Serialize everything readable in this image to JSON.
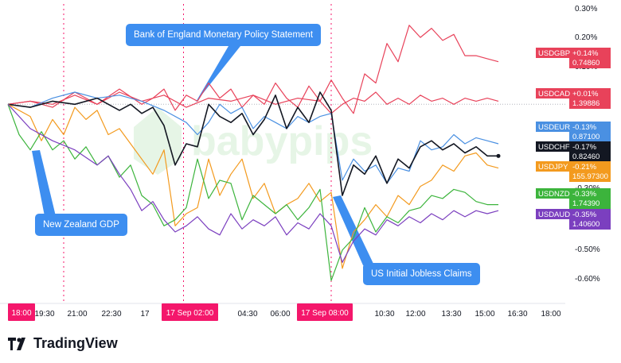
{
  "chart_data": {
    "type": "line",
    "title": "",
    "x_ticks": [
      "18:00",
      "19:30",
      "21:00",
      "22:30",
      "17",
      "02:00",
      "04:30",
      "06:00",
      "08:00",
      "10:30",
      "12:00",
      "13:30",
      "15:00",
      "16:30",
      "18:00"
    ],
    "x_tick_highlights": [
      "18:00",
      "17 Sep 02:00",
      "17 Sep 08:00"
    ],
    "y_ticks": [
      "0.30%",
      "0.20%",
      "0.10%",
      "-0.30%",
      "-0.50%",
      "-0.60%"
    ],
    "ylim": [
      -0.65,
      0.33
    ],
    "xlim": [
      0,
      100
    ],
    "series": [
      {
        "name": "USDGBP",
        "change": "+0.14%",
        "price": "0.74860",
        "color": "#e8425a",
        "x": [
          0,
          4,
          8,
          12,
          16,
          20,
          24,
          26,
          28,
          30,
          32,
          34,
          36,
          38,
          40,
          42,
          44,
          46,
          48,
          50,
          52,
          54,
          56,
          58,
          60,
          62,
          64,
          66,
          68,
          70,
          72,
          74,
          76,
          78,
          80,
          82,
          84,
          86,
          88
        ],
        "y": [
          0.0,
          0.01,
          -0.01,
          0.04,
          0.0,
          0.05,
          0.0,
          0.02,
          0.05,
          -0.02,
          0.03,
          0.01,
          0.07,
          0.02,
          0.05,
          -0.01,
          0.03,
          0.0,
          0.07,
          0.02,
          -0.01,
          0.06,
          0.01,
          0.08,
          0.02,
          -0.03,
          0.1,
          0.07,
          0.2,
          0.14,
          0.26,
          0.22,
          0.25,
          0.21,
          0.23,
          0.16,
          0.16,
          0.15,
          0.14
        ]
      },
      {
        "name": "USDCAD",
        "change": "+0.01%",
        "price": "1.39886",
        "color": "#e8425a",
        "x": [
          0,
          4,
          8,
          12,
          16,
          20,
          24,
          28,
          32,
          36,
          40,
          44,
          48,
          52,
          56,
          58,
          60,
          62,
          64,
          66,
          68,
          70,
          72,
          74,
          76,
          78,
          80,
          82,
          84,
          86,
          88
        ],
        "y": [
          0.0,
          0.01,
          0.0,
          0.03,
          0.0,
          0.04,
          0.01,
          0.03,
          -0.01,
          0.02,
          0.01,
          0.03,
          0.0,
          0.02,
          0.01,
          -0.03,
          0.0,
          0.02,
          0.01,
          0.04,
          0.0,
          0.02,
          0.0,
          0.03,
          0.01,
          0.02,
          0.0,
          0.02,
          0.01,
          0.02,
          0.01
        ]
      },
      {
        "name": "USDEUR",
        "change": "-0.13%",
        "price": "0.87100",
        "color": "#4a90e2",
        "x": [
          0,
          4,
          8,
          12,
          16,
          20,
          24,
          28,
          32,
          34,
          36,
          38,
          40,
          42,
          44,
          46,
          48,
          50,
          52,
          54,
          56,
          58,
          60,
          62,
          64,
          66,
          68,
          70,
          72,
          74,
          76,
          78,
          80,
          82,
          84,
          86,
          88
        ],
        "y": [
          0.0,
          -0.01,
          0.02,
          0.04,
          0.02,
          0.03,
          0.01,
          -0.02,
          -0.06,
          -0.1,
          -0.06,
          0.0,
          -0.03,
          -0.01,
          -0.08,
          -0.04,
          -0.06,
          -0.08,
          -0.04,
          -0.06,
          -0.04,
          -0.03,
          -0.25,
          -0.18,
          -0.22,
          -0.2,
          -0.26,
          -0.21,
          -0.22,
          -0.12,
          -0.15,
          -0.14,
          -0.1,
          -0.13,
          -0.11,
          -0.12,
          -0.13
        ]
      },
      {
        "name": "USDCHF",
        "change": "-0.17%",
        "price": "0.82460",
        "color": "#131722",
        "x": [
          0,
          4,
          8,
          12,
          16,
          20,
          22,
          24,
          26,
          28,
          30,
          32,
          34,
          36,
          38,
          40,
          42,
          44,
          46,
          48,
          50,
          52,
          54,
          56,
          58,
          60,
          62,
          64,
          66,
          68,
          70,
          72,
          74,
          76,
          78,
          80,
          82,
          84,
          86,
          88
        ],
        "y": [
          0.0,
          -0.01,
          0.01,
          0.0,
          0.02,
          -0.02,
          0.0,
          -0.03,
          -0.01,
          -0.07,
          -0.2,
          -0.13,
          -0.14,
          0.0,
          -0.04,
          -0.06,
          -0.03,
          -0.1,
          -0.05,
          0.03,
          -0.08,
          -0.01,
          -0.06,
          0.04,
          -0.02,
          -0.3,
          -0.2,
          -0.23,
          -0.17,
          -0.26,
          -0.18,
          -0.21,
          -0.14,
          -0.12,
          -0.15,
          -0.13,
          -0.16,
          -0.14,
          -0.17,
          -0.17
        ]
      },
      {
        "name": "USDJPY",
        "change": "-0.21%",
        "price": "155.97300",
        "color": "#f39a1e",
        "x": [
          0,
          4,
          6,
          8,
          10,
          12,
          14,
          16,
          18,
          20,
          22,
          24,
          26,
          28,
          30,
          32,
          34,
          36,
          38,
          40,
          42,
          44,
          46,
          48,
          50,
          52,
          54,
          56,
          58,
          60,
          62,
          64,
          66,
          68,
          70,
          72,
          74,
          76,
          78,
          80,
          82,
          84,
          86,
          88
        ],
        "y": [
          0.0,
          -0.04,
          -0.12,
          -0.05,
          -0.1,
          -0.01,
          -0.05,
          -0.02,
          -0.1,
          -0.08,
          -0.13,
          -0.18,
          -0.23,
          -0.15,
          -0.4,
          -0.36,
          -0.34,
          -0.18,
          -0.3,
          -0.23,
          -0.18,
          -0.31,
          -0.26,
          -0.36,
          -0.33,
          -0.31,
          -0.26,
          -0.32,
          -0.29,
          -0.54,
          -0.42,
          -0.38,
          -0.33,
          -0.37,
          -0.3,
          -0.33,
          -0.27,
          -0.25,
          -0.2,
          -0.22,
          -0.17,
          -0.16,
          -0.2,
          -0.21
        ]
      },
      {
        "name": "USDNZD",
        "change": "-0.33%",
        "price": "1.74390",
        "color": "#3cb43c",
        "x": [
          0,
          2,
          4,
          6,
          8,
          10,
          12,
          14,
          16,
          18,
          20,
          22,
          24,
          26,
          28,
          30,
          32,
          34,
          36,
          38,
          40,
          42,
          44,
          46,
          48,
          50,
          52,
          54,
          56,
          58,
          60,
          62,
          64,
          66,
          68,
          70,
          72,
          74,
          76,
          78,
          80,
          82,
          84,
          86,
          88
        ],
        "y": [
          0.0,
          -0.1,
          -0.15,
          -0.09,
          -0.15,
          -0.12,
          -0.18,
          -0.14,
          -0.2,
          -0.17,
          -0.24,
          -0.2,
          -0.3,
          -0.33,
          -0.4,
          -0.38,
          -0.34,
          -0.18,
          -0.31,
          -0.25,
          -0.26,
          -0.38,
          -0.3,
          -0.33,
          -0.36,
          -0.33,
          -0.38,
          -0.34,
          -0.28,
          -0.58,
          -0.48,
          -0.44,
          -0.34,
          -0.42,
          -0.37,
          -0.39,
          -0.35,
          -0.34,
          -0.3,
          -0.31,
          -0.28,
          -0.29,
          -0.32,
          -0.33,
          -0.33
        ]
      },
      {
        "name": "USDAUD",
        "change": "-0.35%",
        "price": "1.40600",
        "color": "#7b3fbf",
        "x": [
          0,
          4,
          8,
          12,
          16,
          18,
          20,
          22,
          24,
          26,
          28,
          30,
          32,
          34,
          36,
          38,
          40,
          42,
          44,
          46,
          48,
          50,
          52,
          54,
          56,
          58,
          60,
          62,
          64,
          66,
          68,
          70,
          72,
          74,
          76,
          78,
          80,
          82,
          84,
          86,
          88
        ],
        "y": [
          0.0,
          -0.08,
          -0.12,
          -0.15,
          -0.2,
          -0.17,
          -0.23,
          -0.28,
          -0.35,
          -0.32,
          -0.38,
          -0.42,
          -0.4,
          -0.37,
          -0.41,
          -0.43,
          -0.36,
          -0.41,
          -0.38,
          -0.4,
          -0.37,
          -0.43,
          -0.39,
          -0.41,
          -0.36,
          -0.4,
          -0.52,
          -0.45,
          -0.41,
          -0.43,
          -0.38,
          -0.4,
          -0.37,
          -0.39,
          -0.36,
          -0.38,
          -0.35,
          -0.37,
          -0.35,
          -0.36,
          -0.35
        ]
      }
    ],
    "annotations": [
      {
        "text": "Bank of England Monetary Policy Statement"
      },
      {
        "text": "New Zealand GDP"
      },
      {
        "text": "US Initial Jobless Claims"
      }
    ],
    "watermark": "babypips",
    "grid": false
  },
  "brand": {
    "name": "TradingView"
  },
  "colors": {
    "highlight": "#f4176b",
    "callout": "#3d8ef0"
  }
}
